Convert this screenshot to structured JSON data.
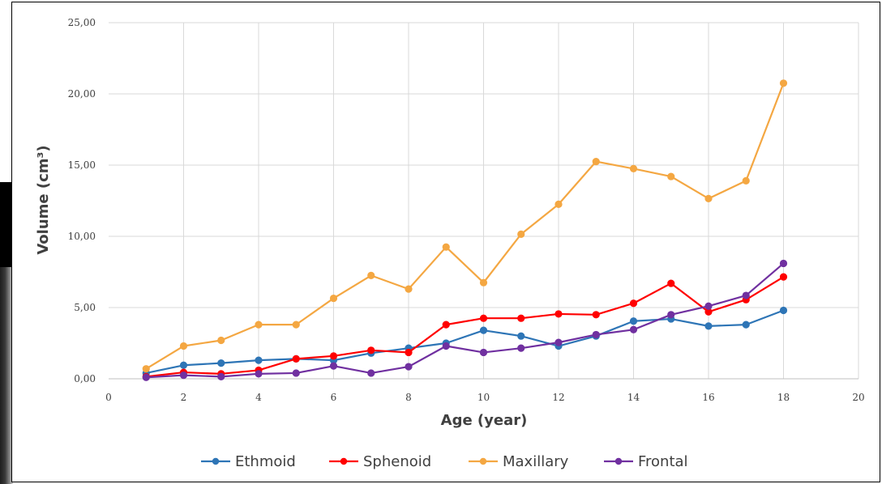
{
  "chart_data": {
    "type": "line",
    "xlabel": "Age (year)",
    "ylabel": "Volume (cm³)",
    "xlim": [
      0,
      20
    ],
    "ylim": [
      0,
      25
    ],
    "x_ticks": [
      "0",
      "2",
      "4",
      "6",
      "8",
      "10",
      "12",
      "14",
      "16",
      "18",
      "20"
    ],
    "y_ticks": [
      "0,00",
      "5,00",
      "10,00",
      "15,00",
      "20,00",
      "25,00"
    ],
    "grid": true,
    "legend_position": "bottom",
    "x": [
      1,
      2,
      3,
      4,
      5,
      6,
      7,
      8,
      9,
      10,
      11,
      12,
      13,
      14,
      15,
      16,
      17,
      18
    ],
    "series": [
      {
        "name": "Ethmoid",
        "color": "#2E75B6",
        "values": [
          0.4,
          0.95,
          1.1,
          1.3,
          1.4,
          1.3,
          1.8,
          2.15,
          2.5,
          3.4,
          3.0,
          2.3,
          3.0,
          4.05,
          4.2,
          3.7,
          3.8,
          4.8
        ]
      },
      {
        "name": "Sphenoid",
        "color": "#FF0000",
        "values": [
          0.15,
          0.45,
          0.35,
          0.6,
          1.4,
          1.6,
          2.0,
          1.85,
          3.8,
          4.25,
          4.25,
          4.55,
          4.5,
          5.3,
          6.7,
          4.7,
          5.55,
          7.15
        ]
      },
      {
        "name": "Maxillary",
        "color": "#F4A742",
        "values": [
          0.7,
          2.3,
          2.7,
          3.8,
          3.8,
          5.65,
          7.25,
          6.3,
          9.25,
          6.75,
          10.15,
          12.25,
          15.25,
          14.75,
          14.2,
          12.65,
          13.9,
          20.75
        ]
      },
      {
        "name": "Frontal",
        "color": "#7030A0",
        "values": [
          0.1,
          0.25,
          0.15,
          0.35,
          0.4,
          0.9,
          0.4,
          0.85,
          2.3,
          1.85,
          2.15,
          2.55,
          3.1,
          3.45,
          4.5,
          5.1,
          5.85,
          8.1
        ]
      }
    ]
  }
}
